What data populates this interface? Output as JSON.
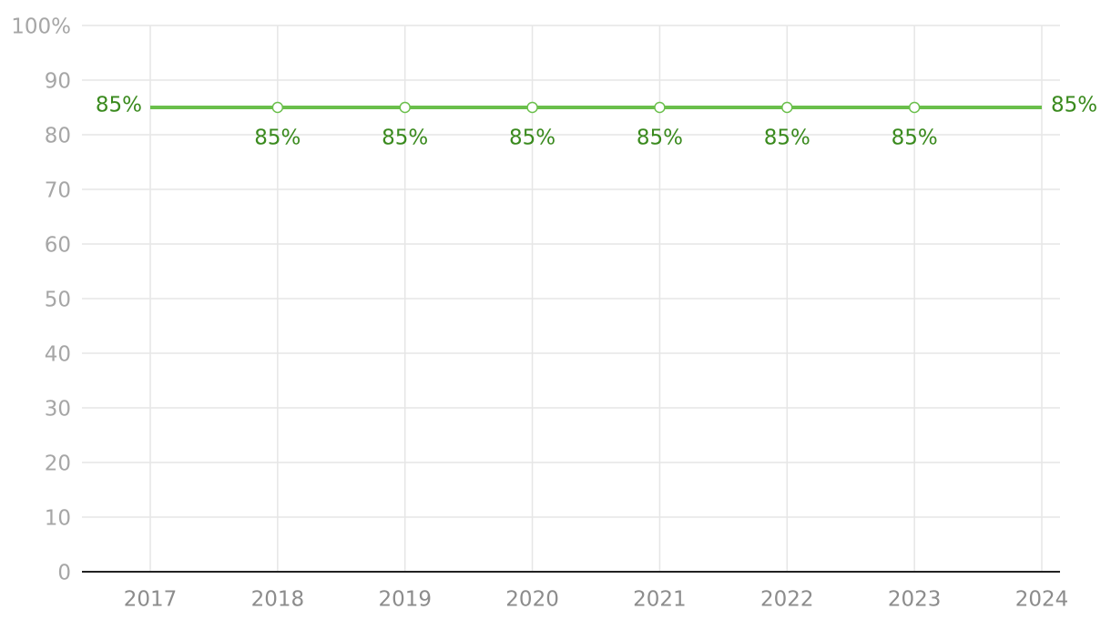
{
  "chart_data": {
    "type": "line",
    "categories": [
      "2017",
      "2018",
      "2019",
      "2020",
      "2021",
      "2022",
      "2023",
      "2024"
    ],
    "series": [
      {
        "color": "#6abf4b",
        "label_color": "#3a8a1e",
        "values": [
          85,
          85,
          85,
          85,
          85,
          85,
          85,
          85
        ],
        "value_labels": [
          "85%",
          "85%",
          "85%",
          "85%",
          "85%",
          "85%",
          "85%",
          "85%"
        ]
      }
    ],
    "ylim": [
      0,
      100
    ],
    "yticks": [
      0,
      10,
      20,
      30,
      40,
      50,
      60,
      70,
      80,
      90,
      {
        "value": 100,
        "label": "100%"
      }
    ],
    "grid": true
  }
}
